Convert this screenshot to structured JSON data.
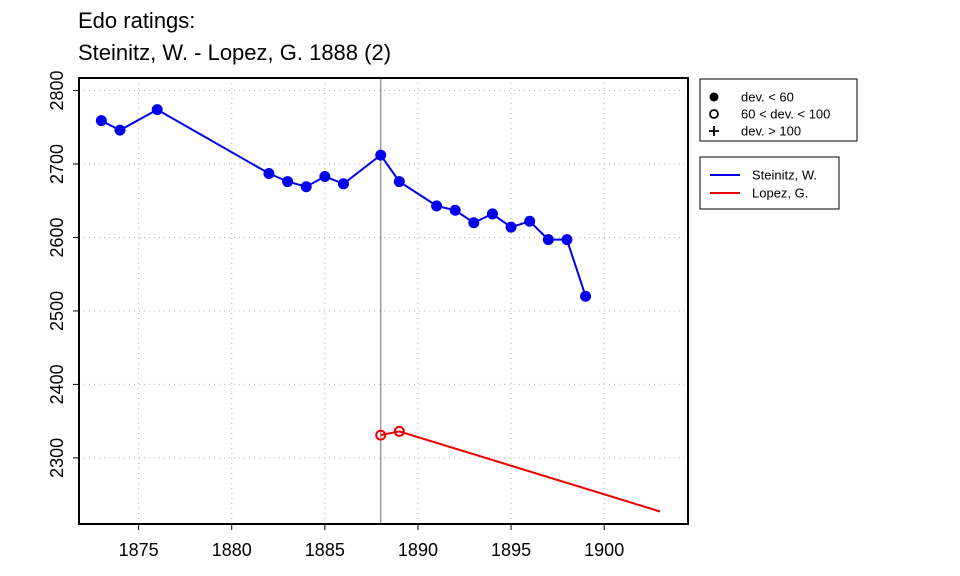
{
  "chart_data": {
    "type": "line",
    "title": "Edo ratings:",
    "subtitle": "Steinitz, W. - Lopez, G. 1888 (2)",
    "xlabel": "",
    "ylabel": "",
    "xlim": [
      1871.8,
      1904.5
    ],
    "ylim": [
      2210,
      2817
    ],
    "x_ticks": [
      1875,
      1880,
      1885,
      1890,
      1895,
      1900
    ],
    "y_ticks": [
      2300,
      2400,
      2500,
      2600,
      2700,
      2800
    ],
    "grid": true,
    "vertical_marker_x": 1888,
    "marker_legend": [
      {
        "symbol": "filled-circle",
        "label": "dev. < 60"
      },
      {
        "symbol": "open-circle",
        "label": "60 < dev. < 100"
      },
      {
        "symbol": "plus",
        "label": "dev. > 100"
      }
    ],
    "series": [
      {
        "name": "Steinitz, W.",
        "color": "#0000ee",
        "points": [
          {
            "x": 1873,
            "y": 2759,
            "marker": "filled-circle"
          },
          {
            "x": 1874,
            "y": 2746,
            "marker": "filled-circle"
          },
          {
            "x": 1876,
            "y": 2774,
            "marker": "filled-circle"
          },
          {
            "x": 1882,
            "y": 2687,
            "marker": "filled-circle"
          },
          {
            "x": 1883,
            "y": 2676,
            "marker": "filled-circle"
          },
          {
            "x": 1884,
            "y": 2669,
            "marker": "filled-circle"
          },
          {
            "x": 1885,
            "y": 2683,
            "marker": "filled-circle"
          },
          {
            "x": 1886,
            "y": 2673,
            "marker": "filled-circle"
          },
          {
            "x": 1888,
            "y": 2712,
            "marker": "filled-circle"
          },
          {
            "x": 1889,
            "y": 2676,
            "marker": "filled-circle"
          },
          {
            "x": 1891,
            "y": 2643,
            "marker": "filled-circle"
          },
          {
            "x": 1892,
            "y": 2637,
            "marker": "filled-circle"
          },
          {
            "x": 1893,
            "y": 2620,
            "marker": "filled-circle"
          },
          {
            "x": 1894,
            "y": 2632,
            "marker": "filled-circle"
          },
          {
            "x": 1895,
            "y": 2614,
            "marker": "filled-circle"
          },
          {
            "x": 1896,
            "y": 2622,
            "marker": "filled-circle"
          },
          {
            "x": 1897,
            "y": 2597,
            "marker": "filled-circle"
          },
          {
            "x": 1898,
            "y": 2597,
            "marker": "filled-circle"
          },
          {
            "x": 1899,
            "y": 2520,
            "marker": "filled-circle"
          }
        ]
      },
      {
        "name": "Lopez, G.",
        "color": "#ee0000",
        "points": [
          {
            "x": 1888,
            "y": 2331,
            "marker": "open-circle"
          },
          {
            "x": 1889,
            "y": 2336,
            "marker": "open-circle"
          },
          {
            "x": 1903,
            "y": 2227,
            "marker": "none"
          }
        ]
      }
    ]
  }
}
